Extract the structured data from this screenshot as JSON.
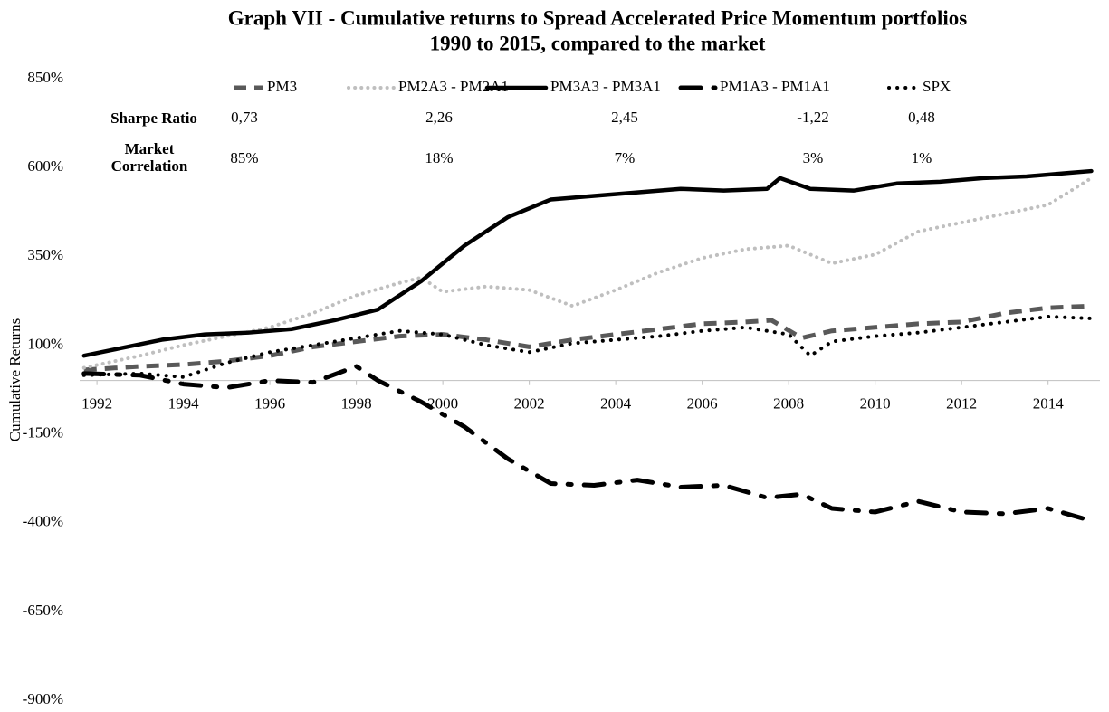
{
  "chart_data": {
    "type": "line",
    "title": "Graph VII - Cumulative returns to Spread Accelerated Price Momentum portfolios",
    "subtitle": "1990 to 2015, compared to the market",
    "y_label": "Cumulative Returns",
    "xlim": [
      1991.6,
      2015.2
    ],
    "xticks": [
      1992,
      1994,
      1996,
      1998,
      2000,
      2002,
      2004,
      2006,
      2008,
      2010,
      2012,
      2014
    ],
    "ylim": [
      -900,
      850
    ],
    "yticks": [
      {
        "value": 850,
        "label": "850%"
      },
      {
        "value": 600,
        "label": "600%"
      },
      {
        "value": 350,
        "label": "350%"
      },
      {
        "value": 100,
        "label": "100%"
      },
      {
        "value": -150,
        "label": "-150%"
      },
      {
        "value": -400,
        "label": "-400%"
      },
      {
        "value": -650,
        "label": "-650%"
      },
      {
        "value": -900,
        "label": "-900%"
      }
    ],
    "grid": false,
    "stats": {
      "row_labels": [
        "Sharpe Ratio",
        "Market Correlation"
      ],
      "rows": [
        [
          "0,73",
          "2,26",
          "2,45",
          "-1,22",
          "0,48"
        ],
        [
          "85%",
          "18%",
          "7%",
          "3%",
          "1%"
        ]
      ]
    },
    "series": [
      {
        "name": "PM3",
        "color": "#595959",
        "x": [
          1991.7,
          1993,
          1994,
          1995,
          1996,
          1997,
          1998,
          1999,
          2000,
          2001,
          2002,
          2003,
          2004,
          2005,
          2006,
          2007,
          2007.6,
          2008.3,
          2009,
          2010,
          2011,
          2012,
          2013,
          2014,
          2015
        ],
        "values": [
          30,
          40,
          45,
          55,
          70,
          95,
          110,
          125,
          130,
          115,
          95,
          115,
          130,
          145,
          160,
          165,
          170,
          120,
          140,
          150,
          160,
          165,
          190,
          205,
          210
        ]
      },
      {
        "name": "PM2A3 - PM2A1",
        "color": "#bfbfbf",
        "x": [
          1991.7,
          1993,
          1994,
          1995,
          1996,
          1997,
          1998,
          1999,
          1999.5,
          2000,
          2001,
          2002,
          2003,
          2004,
          2005,
          2006,
          2007,
          2008,
          2009,
          2010,
          2011,
          2012,
          2013,
          2014,
          2015
        ],
        "values": [
          36,
          70,
          100,
          125,
          150,
          190,
          240,
          275,
          290,
          250,
          265,
          255,
          210,
          255,
          305,
          345,
          370,
          380,
          330,
          355,
          420,
          445,
          470,
          495,
          570
        ]
      },
      {
        "name": "PM3A3 - PM3A1",
        "color": "#000000",
        "x": [
          1991.7,
          1992.5,
          1993.5,
          1994.5,
          1995.5,
          1996.5,
          1997.5,
          1998.5,
          1999.5,
          2000.5,
          2001.5,
          2002.5,
          2003.5,
          2004.5,
          2005.5,
          2006.5,
          2007.5,
          2007.8,
          2008.5,
          2009.5,
          2010.5,
          2011.5,
          2012.5,
          2013.5,
          2014.5,
          2015
        ],
        "values": [
          70,
          90,
          115,
          130,
          135,
          145,
          170,
          200,
          280,
          380,
          460,
          510,
          520,
          530,
          540,
          535,
          540,
          570,
          540,
          535,
          555,
          560,
          570,
          575,
          585,
          590
        ]
      },
      {
        "name": "PM1A3 - PM1A1",
        "color": "#000000",
        "x": [
          1991.7,
          1993,
          1994,
          1995,
          1996,
          1997,
          1998,
          1998.5,
          1999.5,
          2000.5,
          2001.5,
          2002.5,
          2003.5,
          2004.5,
          2005.5,
          2006.5,
          2007.5,
          2008.3,
          2009,
          2010,
          2011,
          2012,
          2013,
          2014,
          2015
        ],
        "values": [
          20,
          15,
          -10,
          -20,
          0,
          -5,
          40,
          0,
          -60,
          -130,
          -220,
          -290,
          -295,
          -280,
          -300,
          -295,
          -330,
          -320,
          -360,
          -370,
          -340,
          -370,
          -375,
          -360,
          -395
        ]
      },
      {
        "name": "SPX",
        "color": "#000000",
        "x": [
          1991.7,
          1993,
          1994,
          1995,
          1996,
          1997,
          1998,
          1999,
          2000,
          2001,
          2002,
          2003,
          2004,
          2005,
          2006,
          2007,
          2008,
          2008.5,
          2009,
          2010,
          2011,
          2012,
          2013,
          2014,
          2015
        ],
        "values": [
          15,
          20,
          10,
          50,
          80,
          100,
          120,
          140,
          130,
          100,
          80,
          105,
          115,
          125,
          140,
          150,
          130,
          70,
          110,
          125,
          135,
          150,
          165,
          180,
          175
        ]
      }
    ]
  }
}
